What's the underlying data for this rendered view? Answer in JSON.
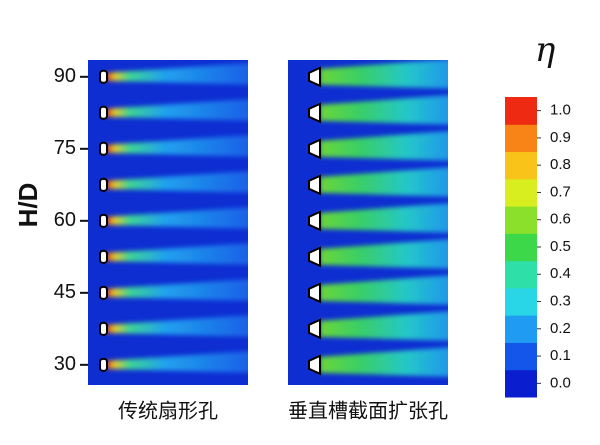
{
  "chart_data": {
    "type": "contour",
    "ylabel": "H/D",
    "ylim": [
      25.8,
      93.5
    ],
    "yticks": [
      30,
      45,
      60,
      75,
      90
    ],
    "panels": [
      {
        "label": "传统扇形孔",
        "hole_shape": "fan",
        "hole_positions": [
          90,
          82.5,
          75,
          67.5,
          60,
          52.5,
          45,
          37.5,
          30
        ]
      },
      {
        "label": "垂直槽截面扩张孔",
        "hole_shape": "slot",
        "hole_positions": [
          90,
          82.5,
          75,
          67.5,
          60,
          52.5,
          45,
          37.5,
          30
        ]
      }
    ],
    "colorbar": {
      "title": "η",
      "lim": [
        -0.05,
        1.05
      ],
      "ticks": [
        {
          "value": 0,
          "label": "0.0"
        },
        {
          "value": 0.1,
          "label": "0.1"
        },
        {
          "value": 0.2,
          "label": "0.2"
        },
        {
          "value": 0.3,
          "label": "0.3"
        },
        {
          "value": 0.4,
          "label": "0.4"
        },
        {
          "value": 0.5,
          "label": "0.5"
        },
        {
          "value": 0.6,
          "label": "0.6"
        },
        {
          "value": 0.7,
          "label": "0.7"
        },
        {
          "value": 0.8,
          "label": "0.8"
        },
        {
          "value": 0.9,
          "label": "0.9"
        },
        {
          "value": 1,
          "label": "1.0"
        }
      ],
      "colors": [
        "#0a1ed0",
        "#1556ea",
        "#1f9cf2",
        "#28d6e6",
        "#2ee0a8",
        "#3cd84a",
        "#8ae02a",
        "#d8ee1e",
        "#f8c41a",
        "#f88418",
        "#ee2a12"
      ]
    }
  }
}
